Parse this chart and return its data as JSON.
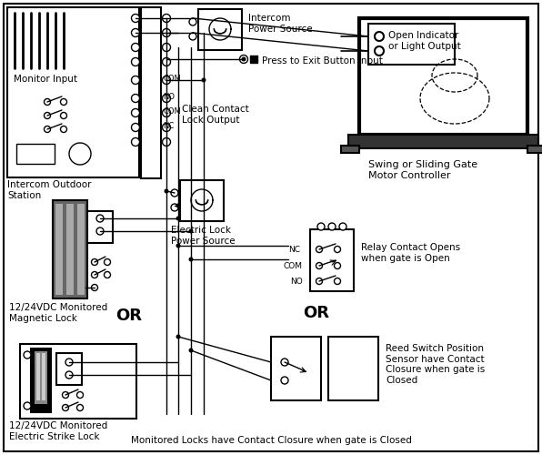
{
  "bg_color": "#ffffff",
  "line_color": "#000000",
  "text_color": "#000000",
  "labels": {
    "intercom_ps": "Intercom\nPower Source",
    "press_exit": "Press to Exit Button Input",
    "clean_contact": "Clean Contact\nLock Output",
    "electric_lock_ps": "Electric Lock\nPower Source",
    "monitor_input": "Monitor Input",
    "intercom_station": "Intercom Outdoor\nStation",
    "mag_lock": "12/24VDC Monitored\nMagnetic Lock",
    "electric_strike": "12/24VDC Monitored\nElectric Strike Lock",
    "gate_controller": "Swing or Sliding Gate\nMotor Controller",
    "open_indicator": "Open Indicator\nor Light Output",
    "relay_contact": "Relay Contact Opens\nwhen gate is Open",
    "reed_switch": "Reed Switch Position\nSensor have Contact\nClosure when gate is\nClosed",
    "monitored_locks": "Monitored Locks have Contact Closure when gate is Closed",
    "or1": "OR",
    "or2": "OR",
    "nc": "NC",
    "com_relay": "COM",
    "no_relay": "NO"
  }
}
